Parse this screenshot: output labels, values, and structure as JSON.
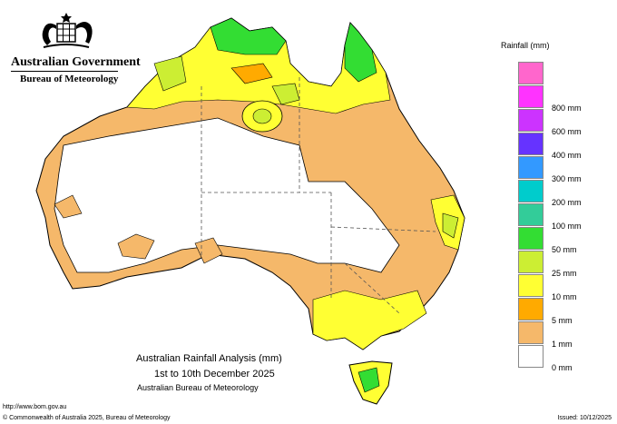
{
  "header": {
    "gov_name": "Australian Government",
    "agency": "Bureau of Meteorology"
  },
  "legend": {
    "title": "Rainfall (mm)",
    "items": [
      {
        "label": "",
        "color": "#ff66cc"
      },
      {
        "label": "800 mm",
        "color": "#ff33ff"
      },
      {
        "label": "600 mm",
        "color": "#cc33ff"
      },
      {
        "label": "400 mm",
        "color": "#6633ff"
      },
      {
        "label": "300 mm",
        "color": "#3399ff"
      },
      {
        "label": "200 mm",
        "color": "#00cccc"
      },
      {
        "label": "100 mm",
        "color": "#33cc99"
      },
      {
        "label": "50 mm",
        "color": "#33dd33"
      },
      {
        "label": "25 mm",
        "color": "#ccee33"
      },
      {
        "label": "10 mm",
        "color": "#ffff33"
      },
      {
        "label": "5 mm",
        "color": "#ffaa00"
      },
      {
        "label": "1 mm",
        "color": "#f5b86a"
      },
      {
        "label": "0 mm",
        "color": "#ffffff"
      }
    ]
  },
  "title": {
    "line1": "Australian Rainfall Analysis (mm)",
    "line2": "1st to 10th December 2025",
    "line3": "Australian Bureau of Meteorology"
  },
  "footer": {
    "url": "http://www.bom.gov.au",
    "copyright": "© Commonwealth of Australia 2025, Bureau of Meteorology",
    "issued": "Issued: 10/12/2025"
  }
}
